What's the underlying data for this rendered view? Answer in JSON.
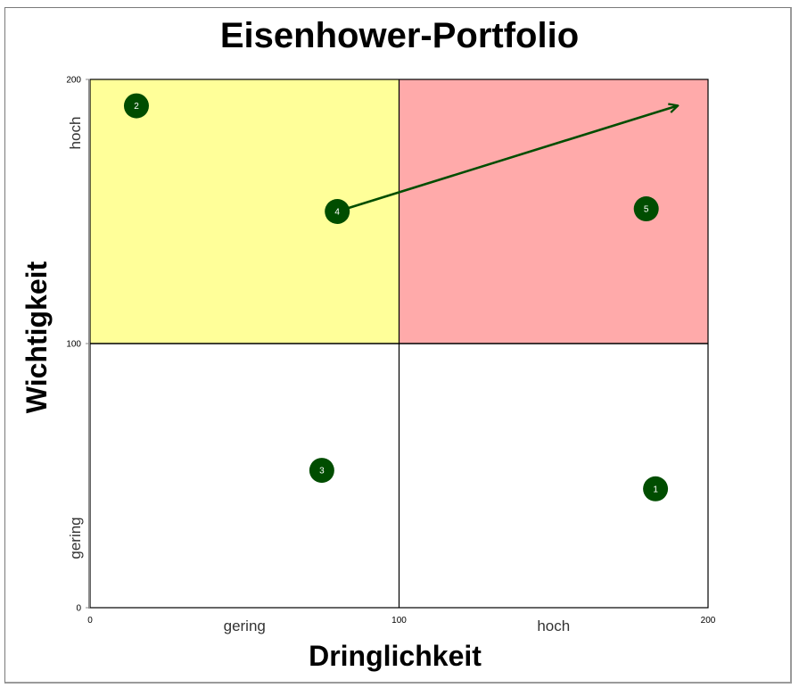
{
  "title": "Eisenhower-Portfolio",
  "axes": {
    "x_title": "Dringlichkeit",
    "y_title": "Wichtigkeit",
    "x_ticks": [
      "0",
      "100",
      "200"
    ],
    "y_ticks": [
      "0",
      "100",
      "200"
    ],
    "x_categories": [
      "gering",
      "hoch"
    ],
    "y_categories": [
      "gering",
      "hoch"
    ]
  },
  "colors": {
    "quadrant_top_left": "#FFFF99",
    "quadrant_top_right": "#FFAAAA",
    "marker": "#004D00",
    "arrow": "#004D00"
  },
  "chart_data": {
    "type": "scatter",
    "title": "Eisenhower-Portfolio",
    "xlabel": "Dringlichkeit",
    "ylabel": "Wichtigkeit",
    "xlim": [
      0,
      200
    ],
    "ylim": [
      0,
      200
    ],
    "grid": false,
    "quadrant_dividers": {
      "x": 100,
      "y": 100
    },
    "quadrants": [
      {
        "position": "top-left",
        "x": [
          0,
          100
        ],
        "y": [
          100,
          200
        ],
        "color": "#FFFF99"
      },
      {
        "position": "top-right",
        "x": [
          100,
          200
        ],
        "y": [
          100,
          200
        ],
        "color": "#FFAAAA"
      },
      {
        "position": "bottom-left",
        "x": [
          0,
          100
        ],
        "y": [
          0,
          100
        ],
        "color": "#FFFFFF"
      },
      {
        "position": "bottom-right",
        "x": [
          100,
          200
        ],
        "y": [
          0,
          100
        ],
        "color": "#FFFFFF"
      }
    ],
    "x_category_labels": [
      {
        "label": "gering",
        "at": 50
      },
      {
        "label": "hoch",
        "at": 150
      }
    ],
    "y_category_labels": [
      {
        "label": "gering",
        "at": 50
      },
      {
        "label": "hoch",
        "at": 150
      }
    ],
    "points": [
      {
        "label": "1",
        "x": 183,
        "y": 45
      },
      {
        "label": "2",
        "x": 15,
        "y": 190
      },
      {
        "label": "3",
        "x": 75,
        "y": 52
      },
      {
        "label": "4",
        "x": 80,
        "y": 150
      },
      {
        "label": "5",
        "x": 180,
        "y": 151
      }
    ],
    "annotations": [
      {
        "type": "arrow",
        "from_point": "4",
        "from": [
          80,
          150
        ],
        "to": [
          190,
          190
        ]
      }
    ]
  }
}
